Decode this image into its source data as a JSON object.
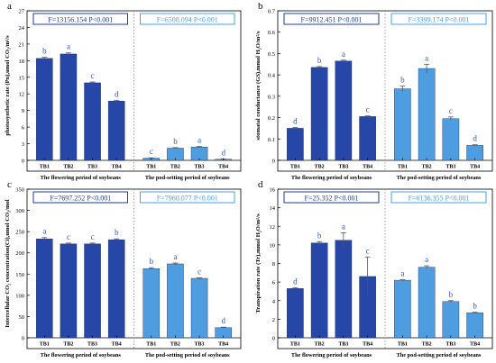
{
  "colors": {
    "flowering": "#2747a8",
    "pod": "#4d9de0",
    "text_label": "#2f55c8",
    "stat_left": "#1f3f96",
    "stat_right": "#4aa3e6",
    "axis": "#000000",
    "divider": "#8a8a8a"
  },
  "chart_data": [
    {
      "type": "bar",
      "panel": "a",
      "ylabel": "photosynthetic rate (Pn),umol CO₂/m²/s",
      "ylim": [
        0,
        27
      ],
      "yticks": [
        0,
        3,
        6,
        9,
        12,
        15,
        18,
        21,
        24,
        27
      ],
      "categories": [
        "TB1",
        "TB2",
        "TB3",
        "TB4"
      ],
      "groups": [
        {
          "name": "The flowering period of soybeans",
          "stat": "F=13156.154 P<0.001",
          "values": [
            18.4,
            19.2,
            14.0,
            10.7
          ],
          "errors": [
            0.2,
            0.2,
            0.15,
            0.15
          ],
          "letters": [
            "b",
            "a",
            "c",
            "d"
          ]
        },
        {
          "name": "The pod-setting period of soybeans",
          "stat": "F=6508.094 P<0.001",
          "values": [
            0.4,
            2.2,
            2.4,
            0.2
          ],
          "errors": [
            0.05,
            0.1,
            0.1,
            0.05
          ],
          "letters": [
            "c",
            "b",
            "a",
            "d"
          ]
        }
      ]
    },
    {
      "type": "bar",
      "panel": "b",
      "ylabel": "stomatal conductance (GS),mmol H₂O/m²/s",
      "ylim": [
        0,
        0.7
      ],
      "yticks": [
        0,
        0.1,
        0.2,
        0.3,
        0.4,
        0.5,
        0.6,
        0.7
      ],
      "categories": [
        "TB1",
        "TB2",
        "TB3",
        "TB4"
      ],
      "groups": [
        {
          "name": "The flowering period of soybeans",
          "stat": "F=9912.451 P<0.001",
          "values": [
            0.15,
            0.435,
            0.465,
            0.205
          ],
          "errors": [
            0.004,
            0.004,
            0.004,
            0.003
          ],
          "letters": [
            "d",
            "b",
            "a",
            "c"
          ]
        },
        {
          "name": "The pod-setting period of soybeans",
          "stat": "F=3399.174 P<0.001",
          "values": [
            0.335,
            0.43,
            0.195,
            0.07
          ],
          "errors": [
            0.012,
            0.02,
            0.008,
            0.003
          ],
          "letters": [
            "b",
            "a",
            "c",
            "d"
          ]
        }
      ]
    },
    {
      "type": "bar",
      "panel": "c",
      "ylabel": "Intercellular CO₂ concentration(Ci),umol CO₂/mol",
      "ylim": [
        0,
        350
      ],
      "yticks": [
        0,
        50,
        100,
        150,
        200,
        250,
        300,
        350
      ],
      "categories": [
        "TB1",
        "TB2",
        "TB3",
        "TB4"
      ],
      "groups": [
        {
          "name": "The flowering period of soybeans",
          "stat": "F=7697.252 P<0.001",
          "values": [
            233,
            221,
            221,
            231
          ],
          "errors": [
            3,
            2,
            2,
            2
          ],
          "letters": [
            "a",
            "c",
            "c",
            "b"
          ]
        },
        {
          "name": "The pod-setting period of soybeans",
          "stat": "F=7960.077 P<0.001",
          "values": [
            163,
            174,
            140,
            24
          ],
          "errors": [
            2,
            2,
            1.5,
            1
          ],
          "letters": [
            "b",
            "a",
            "c",
            "d"
          ]
        }
      ]
    },
    {
      "type": "bar",
      "panel": "d",
      "ylabel": "Transpiration rate (Tr),mmol H₂O/m²/s",
      "ylim": [
        0,
        16
      ],
      "yticks": [
        0,
        2,
        4,
        6,
        8,
        10,
        12,
        14,
        16
      ],
      "categories": [
        "TB1",
        "TB2",
        "TB3",
        "TB4"
      ],
      "groups": [
        {
          "name": "The flowering period of soybeans",
          "stat": "F=25.352 P<0.001",
          "values": [
            5.3,
            10.2,
            10.5,
            6.6
          ],
          "errors": [
            0.1,
            0.15,
            0.8,
            2.1
          ],
          "letters": [
            "d",
            "b",
            "a",
            "c"
          ]
        },
        {
          "name": "The pod-setting period of soybeans",
          "stat": "F=6136.355 P<0.001",
          "values": [
            6.2,
            7.6,
            3.9,
            2.7
          ],
          "errors": [
            0.05,
            0.15,
            0.1,
            0.05
          ],
          "letters": [
            "a",
            "a",
            "b",
            "b"
          ]
        }
      ]
    }
  ]
}
